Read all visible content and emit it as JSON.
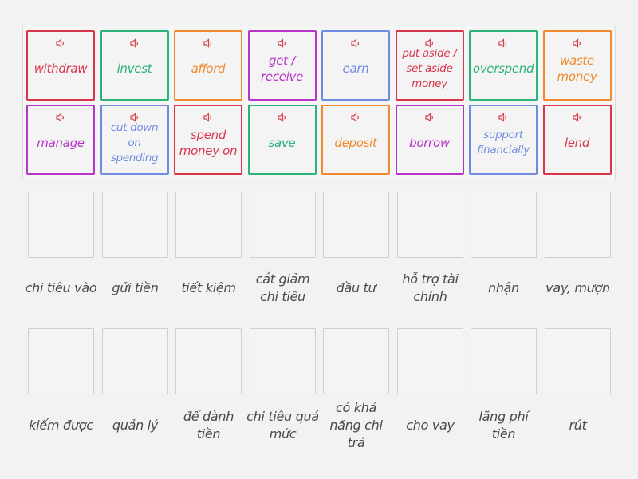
{
  "colors": {
    "red": "#d9364e",
    "green": "#2bb37a",
    "orange": "#f08a2c",
    "purple": "#b734c9",
    "blue": "#6f8de0",
    "label_text": "#4a4a4a",
    "speaker_icon": "#d8434f"
  },
  "cards": [
    {
      "text": "withdraw",
      "color": "red"
    },
    {
      "text": "invest",
      "color": "green"
    },
    {
      "text": "afford",
      "color": "orange"
    },
    {
      "text": "get / receive",
      "color": "purple"
    },
    {
      "text": "earn",
      "color": "blue"
    },
    {
      "text": "put aside / set aside money",
      "color": "red"
    },
    {
      "text": "overspend",
      "color": "green"
    },
    {
      "text": "waste money",
      "color": "orange"
    },
    {
      "text": "manage",
      "color": "purple"
    },
    {
      "text": "cut down on spending",
      "color": "blue"
    },
    {
      "text": "spend money on",
      "color": "red"
    },
    {
      "text": "save",
      "color": "green"
    },
    {
      "text": "deposit",
      "color": "orange"
    },
    {
      "text": "borrow",
      "color": "purple"
    },
    {
      "text": "support financially",
      "color": "blue"
    },
    {
      "text": "lend",
      "color": "red"
    }
  ],
  "targets": [
    {
      "label": "chi tiêu vào"
    },
    {
      "label": "gửi tiền"
    },
    {
      "label": "tiết kiệm"
    },
    {
      "label": "cắt giảm chi tiêu"
    },
    {
      "label": "đầu tư"
    },
    {
      "label": "hỗ trợ tài chính"
    },
    {
      "label": "nhận"
    },
    {
      "label": "vay, mượn"
    },
    {
      "label": "kiếm được"
    },
    {
      "label": "quản lý"
    },
    {
      "label": "để dành tiền"
    },
    {
      "label": "chi tiêu quá mức"
    },
    {
      "label": "có khả năng chi trả"
    },
    {
      "label": "cho vay"
    },
    {
      "label": "lãng phí tiền"
    },
    {
      "label": "rút"
    }
  ]
}
